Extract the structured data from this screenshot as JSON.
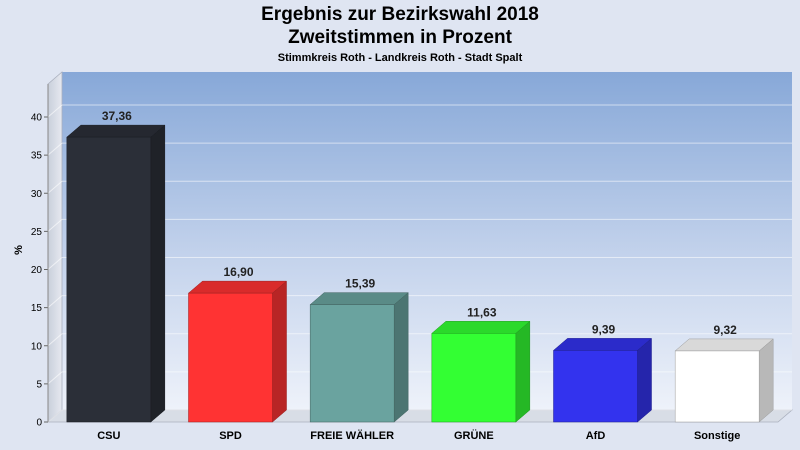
{
  "chart_data": {
    "type": "bar",
    "title": "Ergebnis zur Bezirkswahl 2018",
    "title2": "Zweitstimmen in Prozent",
    "subtitle": "Stimmkreis Roth - Landkreis Roth - Stadt Spalt",
    "ylabel": "%",
    "xlabel": "",
    "ylim": [
      0,
      40
    ],
    "yticks": [
      0,
      5,
      10,
      15,
      20,
      25,
      30,
      35,
      40
    ],
    "grid": true,
    "categories": [
      "CSU",
      "SPD",
      "FREIE WÄHLER",
      "GRÜNE",
      "AfD",
      "Sonstige"
    ],
    "values": [
      37.36,
      16.9,
      15.39,
      11.63,
      9.39,
      9.32
    ],
    "value_labels": [
      "37,36",
      "16,90",
      "15,39",
      "11,63",
      "9,39",
      "9,32"
    ],
    "colors": [
      "#2b2f38",
      "#ff3333",
      "#6aa39f",
      "#33ff33",
      "#3333ee",
      "#ffffff"
    ]
  }
}
